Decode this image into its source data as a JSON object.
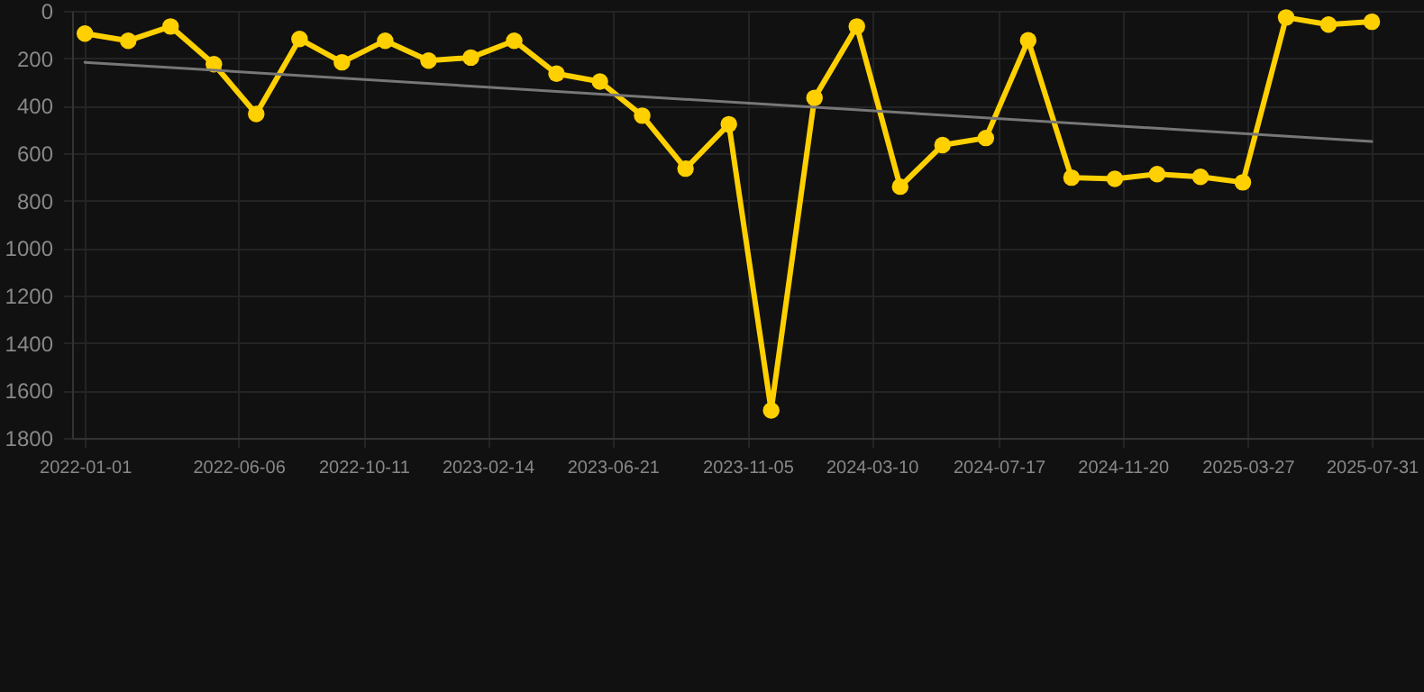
{
  "chart_data": {
    "type": "line",
    "x": [
      "2022-01-01",
      "2022-02-14",
      "2022-03-29",
      "2022-05-12",
      "2022-06-24",
      "2022-08-07",
      "2022-09-19",
      "2022-11-02",
      "2022-12-16",
      "2023-01-28",
      "2023-03-13",
      "2023-04-25",
      "2023-06-08",
      "2023-07-21",
      "2023-09-03",
      "2023-10-17",
      "2023-11-29",
      "2024-01-12",
      "2024-02-24",
      "2024-04-08",
      "2024-05-21",
      "2024-07-04",
      "2024-08-16",
      "2024-09-29",
      "2024-11-12",
      "2024-12-25",
      "2025-02-07",
      "2025-03-22",
      "2025-05-05",
      "2025-06-17",
      "2025-07-31"
    ],
    "series": [
      {
        "color": "#ffd000",
        "marker": "circle",
        "line_style": "solid",
        "values": [
          96,
          126,
          66,
          225,
          435,
          119,
          217,
          126,
          210,
          197,
          126,
          265,
          298,
          442,
          665,
          478,
          1684,
          367,
          66,
          741,
          566,
          536,
          124,
          703,
          708,
          688,
          700,
          723,
          28,
          58,
          46
        ]
      },
      {
        "type": "line",
        "color": "#777777",
        "marker": "none",
        "x": [
          "2022-01-01",
          "2025-07-31"
        ],
        "values": [
          217,
          551
        ]
      }
    ],
    "xlim": [
      "2021-12-19",
      "2025-09-22"
    ],
    "xticks": [
      "2022-01-01",
      "2022-06-06",
      "2022-10-11",
      "2023-02-14",
      "2023-06-21",
      "2023-11-05",
      "2024-03-10",
      "2024-07-17",
      "2024-11-20",
      "2025-03-27",
      "2025-07-31"
    ],
    "ylim": [
      1800,
      0
    ],
    "yticks": [
      0,
      200,
      400,
      600,
      800,
      1000,
      1200,
      1400,
      1600,
      1800
    ],
    "grid": true
  }
}
